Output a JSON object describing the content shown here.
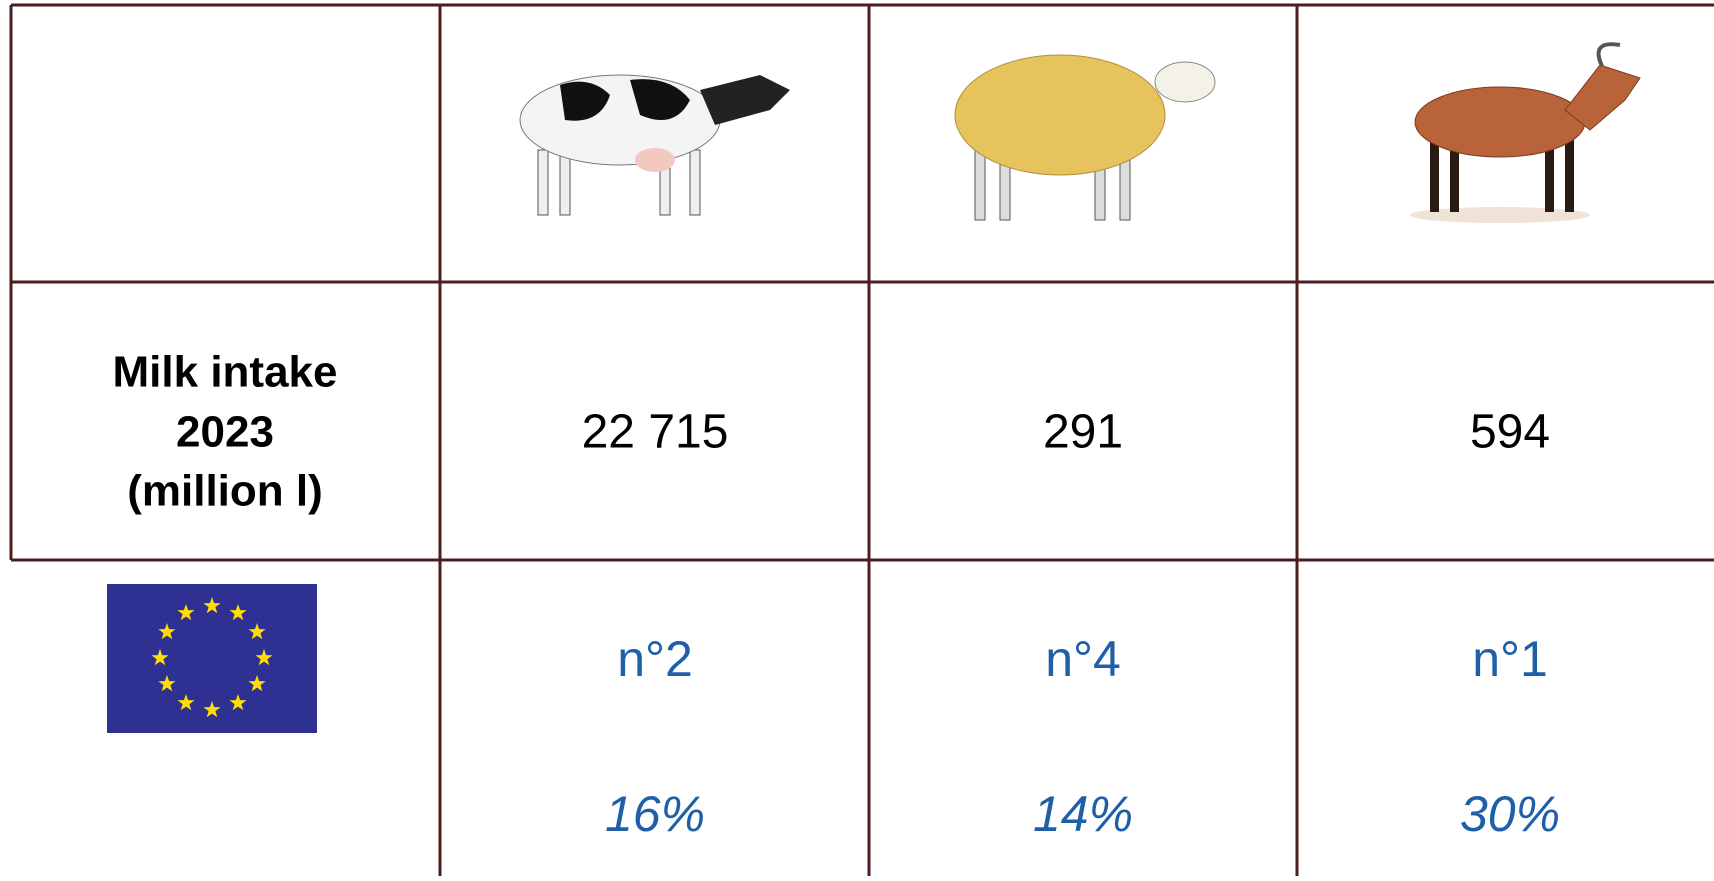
{
  "table": {
    "rows": [
      {
        "header": [
          "Milk intake",
          "2023",
          "(million l)"
        ],
        "cells": [
          "22 715",
          "291",
          "594"
        ]
      },
      {
        "cells": [
          {
            "rank": "n°2",
            "share": "16%"
          },
          {
            "rank": "n°4",
            "share": "14%"
          },
          {
            "rank": "n°1",
            "share": "30%"
          }
        ]
      }
    ]
  }
}
